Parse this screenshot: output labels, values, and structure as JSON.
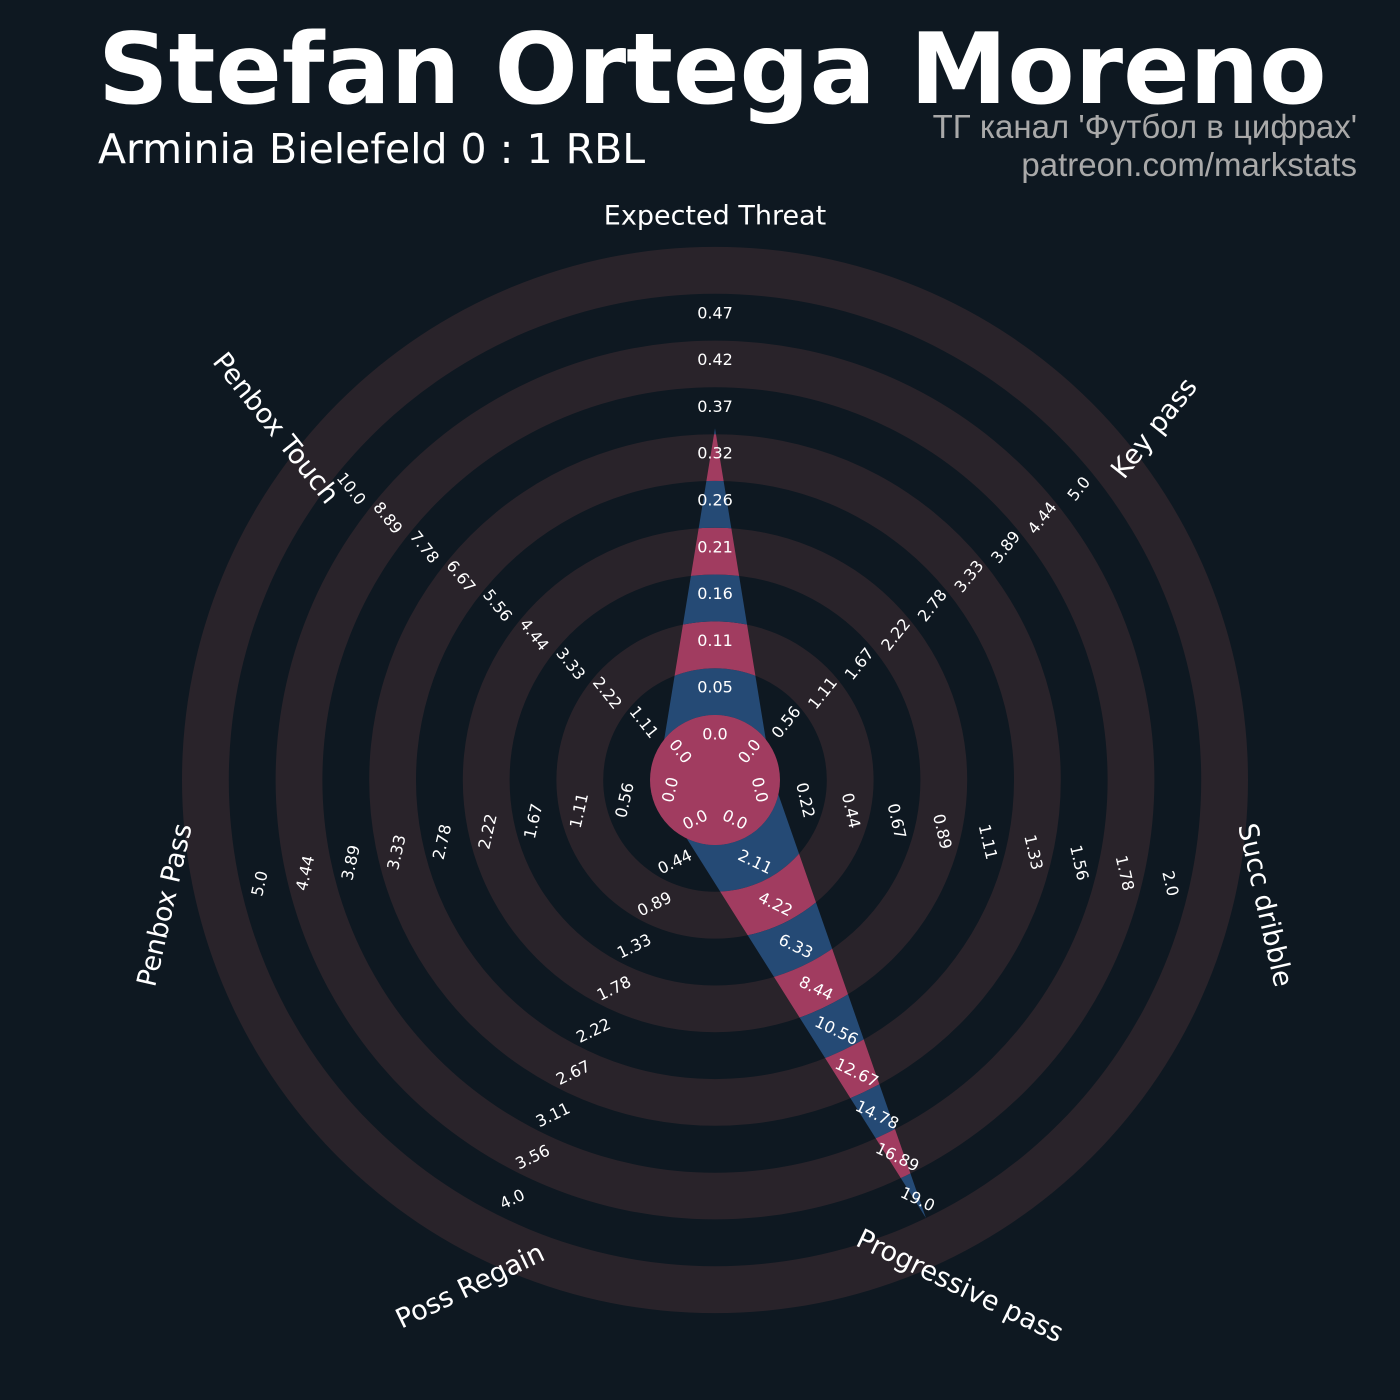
{
  "header": {
    "title": "Stefan Ortega Moreno",
    "subtitle": "Arminia Bielefeld 0 : 1 RBL",
    "credit_line1": "ТГ канал 'Футбол в цифрах'",
    "credit_line2": "patreon.com/markstats"
  },
  "colors": {
    "background": "#0e1821",
    "ring": "#29232a",
    "series_pink": "#a13c60",
    "series_blue": "#254a75",
    "text": "#ffffff",
    "credit": "#a9a9a9"
  },
  "chart_data": {
    "type": "radar",
    "title": "Stefan Ortega Moreno",
    "subtitle": "Arminia Bielefeld 0 : 1 RBL",
    "params": [
      "Expected Threat",
      "Key pass",
      "Succ dribble",
      "Progressive pass",
      "Poss Regain",
      "Penbox Pass",
      "Penbox Touch"
    ],
    "ranges": [
      [
        0.0,
        0.47
      ],
      [
        0.0,
        5.0
      ],
      [
        0.0,
        2.0
      ],
      [
        0.0,
        19.0
      ],
      [
        0.0,
        4.0
      ],
      [
        0.0,
        5.0
      ],
      [
        0.0,
        10.0
      ]
    ],
    "values": [
      0.32,
      0.0,
      0.0,
      19.0,
      0.0,
      0.0,
      0.0
    ],
    "tick_labels": [
      [
        "0.0",
        "0.05",
        "0.11",
        "0.16",
        "0.21",
        "0.26",
        "0.32",
        "0.37",
        "0.42",
        "0.47"
      ],
      [
        "0.0",
        "0.56",
        "1.11",
        "1.67",
        "2.22",
        "2.78",
        "3.33",
        "3.89",
        "4.44",
        "5.0"
      ],
      [
        "0.0",
        "0.22",
        "0.44",
        "0.67",
        "0.89",
        "1.11",
        "1.33",
        "1.56",
        "1.78",
        "2.0"
      ],
      [
        "0.0",
        "2.11",
        "4.22",
        "6.33",
        "8.44",
        "10.56",
        "12.67",
        "14.78",
        "16.89",
        "19.0"
      ],
      [
        "0.0",
        "0.44",
        "0.89",
        "1.33",
        "1.78",
        "2.22",
        "2.67",
        "3.11",
        "3.56",
        "4.0"
      ],
      [
        "0.0",
        "0.56",
        "1.11",
        "1.67",
        "2.22",
        "2.78",
        "3.33",
        "3.89",
        "4.44",
        "5.0"
      ],
      [
        "0.0",
        "1.11",
        "2.22",
        "3.33",
        "4.44",
        "5.56",
        "6.67",
        "7.78",
        "8.89",
        "10.0"
      ]
    ],
    "grid": true,
    "legend": "none"
  }
}
